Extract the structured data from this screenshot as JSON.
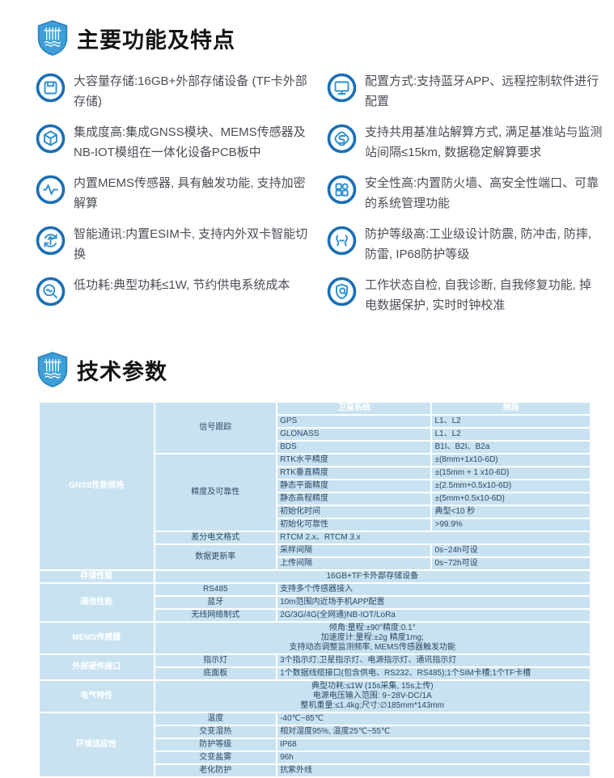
{
  "features_section": {
    "title": "主要功能及特点",
    "items": [
      {
        "icon": "floppy-disk",
        "text": "大容量存储:16GB+外部存储设备 (TF卡外部存储)"
      },
      {
        "icon": "cube",
        "text": "集成度高:集成GNSS模块、MEMS传感器及NB-IOT模组在一体化设备PCB板中"
      },
      {
        "icon": "pulse-waveform",
        "text": "内置MEMS传感器, 具有触发功能, 支持加密解算"
      },
      {
        "icon": "sync-arrows",
        "text": "智能通讯:内置ESIM卡, 支持内外双卡智能切换"
      },
      {
        "icon": "magnifier-wave",
        "text": "低功耗:典型功耗≤1W, 节约供电系统成本"
      },
      {
        "icon": "monitor",
        "text": "配置方式:支持蓝牙APP、远程控制软件进行配置"
      },
      {
        "icon": "data-flow",
        "text": "支持共用基准站解算方式, 满足基准站与监测站间隔≤15km, 数据稳定解算要求"
      },
      {
        "icon": "grid-squares",
        "text": "安全性高:内置防火墙、高安全性端口、可靠的系统管理功能"
      },
      {
        "icon": "vibration",
        "text": "防护等级高:工业级设计防震, 防冲击, 防摔, 防雷, IP68防护等级"
      },
      {
        "icon": "shield-search",
        "text": "工作状态自检, 自我诊断, 自我修复功能, 掉电数据保护, 实时时钟校准"
      }
    ]
  },
  "specs_section": {
    "title": "技术参数",
    "table": {
      "col_headers": [
        "卫星系统",
        "频段"
      ],
      "rows": [
        [
          {
            "t": "GNSS性能规格",
            "c": "cat",
            "rs": 13
          },
          {
            "t": "信号跟踪",
            "c": "sub",
            "rs": 4
          },
          {
            "t": "卫星系统",
            "c": "head"
          },
          {
            "t": "频段",
            "c": "head"
          }
        ],
        [
          {
            "t": "GPS",
            "c": "val"
          },
          {
            "t": "L1、L2",
            "c": "val"
          }
        ],
        [
          {
            "t": "GLONASS",
            "c": "val"
          },
          {
            "t": "L1、L2",
            "c": "val"
          }
        ],
        [
          {
            "t": "BDS",
            "c": "val"
          },
          {
            "t": "B1I、B2I、B2a",
            "c": "val"
          }
        ],
        [
          {
            "t": "精度及可靠性",
            "c": "sub",
            "rs": 6
          },
          {
            "t": "RTK水平精度",
            "c": "val"
          },
          {
            "t": "±(8mm+1x10-6D)",
            "c": "val"
          }
        ],
        [
          {
            "t": "RTK垂直精度",
            "c": "val"
          },
          {
            "t": "±(15mm + 1 x10-6D)",
            "c": "val"
          }
        ],
        [
          {
            "t": "静态平面精度",
            "c": "val"
          },
          {
            "t": "±(2.5mm+0.5x10-6D)",
            "c": "val"
          }
        ],
        [
          {
            "t": "静态高程精度",
            "c": "val"
          },
          {
            "t": "±(5mm+0.5x10-6D)",
            "c": "val"
          }
        ],
        [
          {
            "t": "初始化时间",
            "c": "val"
          },
          {
            "t": "典型<10 秒",
            "c": "val"
          }
        ],
        [
          {
            "t": "初始化可靠性",
            "c": "val"
          },
          {
            "t": ">99.9%",
            "c": "val"
          }
        ],
        [
          {
            "t": "差分电文格式",
            "c": "sub"
          },
          {
            "t": "RTCM 2.x、RTCM 3.x",
            "c": "val",
            "cs": 2
          }
        ],
        [
          {
            "t": "数据更新率",
            "c": "sub",
            "rs": 2
          },
          {
            "t": "采样间隔",
            "c": "val"
          },
          {
            "t": "0s~24h可设",
            "c": "val"
          }
        ],
        [
          {
            "t": "上传间隔",
            "c": "val"
          },
          {
            "t": "0s~72h可设",
            "c": "val"
          }
        ],
        [
          {
            "t": "存储性能",
            "c": "cat"
          },
          {
            "t": "16GB+TF卡外部存储设备",
            "c": "valc",
            "cs": 3
          }
        ],
        [
          {
            "t": "通信性能",
            "c": "cat",
            "rs": 3
          },
          {
            "t": "RS485",
            "c": "sub"
          },
          {
            "t": "支持多个传感器接入",
            "c": "val",
            "cs": 2
          }
        ],
        [
          {
            "t": "蓝牙",
            "c": "sub"
          },
          {
            "t": "10m范围内近场手机APP配置",
            "c": "val",
            "cs": 2
          }
        ],
        [
          {
            "t": "无线网络制式",
            "c": "sub"
          },
          {
            "t": "2G/3G/4G(全网通)NB-IOT/LoRa",
            "c": "val",
            "cs": 2
          }
        ],
        [
          {
            "t": "MEMS传感器",
            "c": "cat"
          },
          {
            "t": "倾角:量程:±90°精度:0.1°\n加速度计:量程:±2g 精度1mg;\n支持动态调整监测频率, MEMS传感器触发功能",
            "c": "valc",
            "cs": 3
          }
        ],
        [
          {
            "t": "外部硬件接口",
            "c": "cat",
            "rs": 2
          },
          {
            "t": "指示灯",
            "c": "sub"
          },
          {
            "t": "3个指示灯:卫星指示灯、电源指示灯、通讯指示灯",
            "c": "val",
            "cs": 2
          }
        ],
        [
          {
            "t": "底面板",
            "c": "sub"
          },
          {
            "t": "1个数据线缆接口(包含供电、RS232、RS485);1个SIM卡槽;1个TF卡槽",
            "c": "val",
            "cs": 2
          }
        ],
        [
          {
            "t": "电气特性",
            "c": "cat"
          },
          {
            "t": "典型功耗:≤1W (15s采集, 15s上传)\n电源电压输入范围: 9~28V-DC/1A\n整机重量:≤1.4kg;尺寸:∅185mm*143mm",
            "c": "valc",
            "cs": 3
          }
        ],
        [
          {
            "t": "环境适应性",
            "c": "cat",
            "rs": 5
          },
          {
            "t": "温度",
            "c": "sub"
          },
          {
            "t": "-40℃~85℃",
            "c": "val",
            "cs": 2
          }
        ],
        [
          {
            "t": "交变湿热",
            "c": "sub"
          },
          {
            "t": "相对湿度95%, 温度25℃~55℃",
            "c": "val",
            "cs": 2
          }
        ],
        [
          {
            "t": "防护等级",
            "c": "sub"
          },
          {
            "t": "IP68",
            "c": "val",
            "cs": 2
          }
        ],
        [
          {
            "t": "交变盐雾",
            "c": "sub"
          },
          {
            "t": "96h",
            "c": "val",
            "cs": 2
          }
        ],
        [
          {
            "t": "老化防护",
            "c": "sub"
          },
          {
            "t": "抗紫外线",
            "c": "val",
            "cs": 2
          }
        ]
      ]
    }
  },
  "colors": {
    "table_header_bg": "#2980b9",
    "table_subcell_bg": "#cfe2ec",
    "table_value_bg": "#c9e2f1",
    "shield_blue": "#3d9ed8",
    "icon_ring_blue": "#1a6fb5",
    "icon_glyph_blue": "#2e8fd0",
    "feature_text": "#4b4e57"
  }
}
